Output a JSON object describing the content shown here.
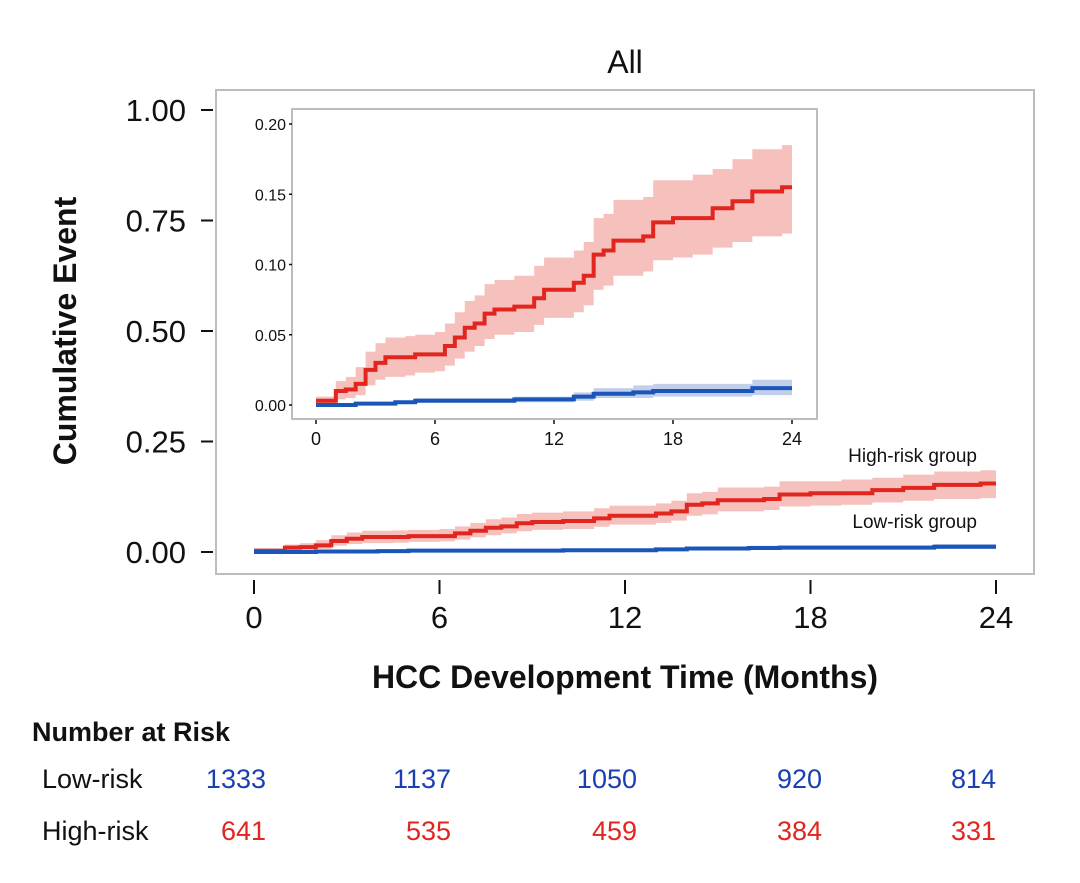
{
  "chart_data": {
    "type": "line",
    "title": "All",
    "xlabel": "HCC Development Time (Months)",
    "ylabel": "Cumulative Event",
    "xlim": [
      0,
      24
    ],
    "ylim": [
      0,
      1
    ],
    "xticks": [
      "0",
      "6",
      "12",
      "18",
      "24"
    ],
    "yticks": [
      "0.00",
      "0.25",
      "0.50",
      "0.75",
      "1.00"
    ],
    "grid": false,
    "colors": {
      "high": "#e0261f",
      "high_band": "#f4b6b2",
      "low": "#1a55b8",
      "low_band": "#b8c6e8",
      "frame": "#bdbdbd"
    },
    "series": [
      {
        "name": "High-risk group",
        "step": true,
        "x": [
          0,
          0.8,
          1,
          1.5,
          2,
          2.5,
          3,
          3.5,
          4.5,
          5,
          6,
          6.5,
          7,
          7.5,
          8,
          8.5,
          9,
          10,
          11,
          11.5,
          12.5,
          13,
          13.5,
          14,
          14.5,
          15,
          16.5,
          17,
          18,
          19,
          20,
          21,
          22,
          23.5,
          24
        ],
        "y": [
          0.003,
          0.003,
          0.01,
          0.011,
          0.015,
          0.025,
          0.03,
          0.034,
          0.034,
          0.036,
          0.036,
          0.042,
          0.048,
          0.055,
          0.058,
          0.065,
          0.068,
          0.07,
          0.076,
          0.082,
          0.082,
          0.087,
          0.092,
          0.107,
          0.11,
          0.117,
          0.12,
          0.13,
          0.133,
          0.133,
          0.14,
          0.145,
          0.152,
          0.155,
          0.155
        ],
        "upper": [
          0.006,
          0.006,
          0.017,
          0.02,
          0.027,
          0.038,
          0.044,
          0.048,
          0.049,
          0.05,
          0.052,
          0.058,
          0.066,
          0.074,
          0.078,
          0.086,
          0.089,
          0.092,
          0.099,
          0.105,
          0.105,
          0.11,
          0.116,
          0.133,
          0.136,
          0.146,
          0.148,
          0.16,
          0.16,
          0.164,
          0.168,
          0.175,
          0.182,
          0.185,
          0.185
        ],
        "lower": [
          0,
          0,
          0.004,
          0.005,
          0.007,
          0.014,
          0.018,
          0.02,
          0.021,
          0.023,
          0.024,
          0.028,
          0.033,
          0.038,
          0.042,
          0.047,
          0.05,
          0.052,
          0.057,
          0.062,
          0.062,
          0.066,
          0.071,
          0.082,
          0.085,
          0.092,
          0.095,
          0.103,
          0.105,
          0.107,
          0.112,
          0.116,
          0.12,
          0.122,
          0.122
        ]
      },
      {
        "name": "Low-risk group",
        "step": true,
        "x": [
          0,
          2,
          4,
          5,
          10,
          13,
          14,
          16,
          17,
          21,
          22,
          24
        ],
        "y": [
          0,
          0.001,
          0.002,
          0.003,
          0.004,
          0.006,
          0.008,
          0.009,
          0.01,
          0.01,
          0.012,
          0.012
        ],
        "upper": [
          0.001,
          0.002,
          0.003,
          0.005,
          0.006,
          0.009,
          0.012,
          0.014,
          0.015,
          0.015,
          0.018,
          0.018
        ],
        "lower": [
          0,
          0,
          0.001,
          0.002,
          0.002,
          0.003,
          0.005,
          0.005,
          0.006,
          0.006,
          0.007,
          0.007
        ]
      }
    ],
    "inset": {
      "xlim": [
        0,
        24
      ],
      "ylim": [
        0,
        0.2
      ],
      "xticks": [
        "0",
        "6",
        "12",
        "18",
        "24"
      ],
      "yticks": [
        "0.00",
        "0.05",
        "0.10",
        "0.15",
        "0.20"
      ]
    }
  },
  "risk_table": {
    "title": "Number at Risk",
    "rows": [
      {
        "label": "Low-risk",
        "color": "#1a3fb0",
        "values": [
          "1333",
          "1137",
          "1050",
          "920",
          "814"
        ]
      },
      {
        "label": "High-risk",
        "color": "#e0261f",
        "values": [
          "641",
          "535",
          "459",
          "384",
          "331"
        ]
      }
    ]
  }
}
